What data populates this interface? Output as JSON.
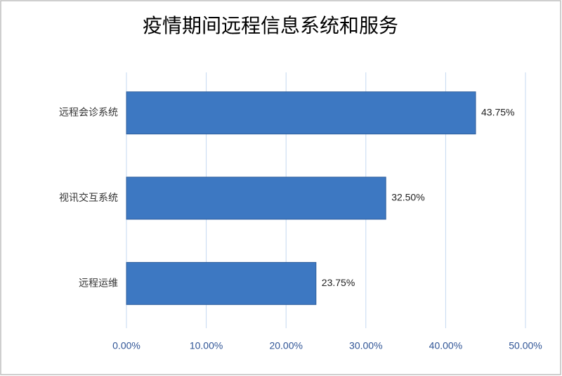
{
  "chart_data": {
    "type": "hbar",
    "title": "疫情期间远程信息系统和服务",
    "categories": [
      "远程会诊系统",
      "视讯交互系统",
      "远程运维"
    ],
    "values": [
      43.75,
      32.5,
      23.75
    ],
    "value_labels": [
      "43.75%",
      "32.50%",
      "23.75%"
    ],
    "color": "#3d78c2",
    "xlim": [
      0,
      50
    ],
    "xticks": [
      {
        "value": 0,
        "label": "0.00%"
      },
      {
        "value": 10,
        "label": "10.00%"
      },
      {
        "value": 20,
        "label": "20.00%"
      },
      {
        "value": 30,
        "label": "30.00%"
      },
      {
        "value": 40,
        "label": "40.00%"
      },
      {
        "value": 50,
        "label": "50.00%"
      }
    ],
    "grid": true
  }
}
